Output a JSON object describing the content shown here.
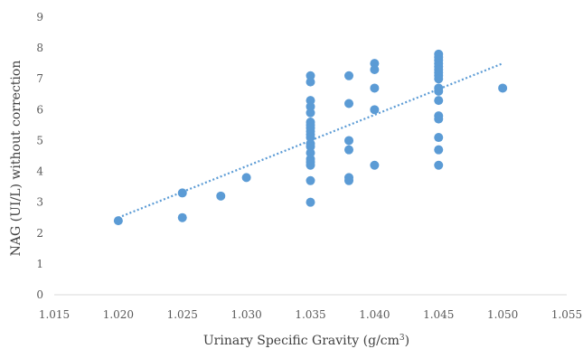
{
  "chart_data": {
    "type": "scatter",
    "xlabel": "Urinary Specific Gravity (g/cm",
    "xlabel_sup": "3",
    "xlabel_close": ")",
    "ylabel": "NAG (UI/L) without correction",
    "xlim": [
      1.015,
      1.055
    ],
    "ylim": [
      0,
      9
    ],
    "x_ticks": [
      "1.015",
      "1.020",
      "1.025",
      "1.030",
      "1.035",
      "1.040",
      "1.045",
      "1.050",
      "1.055"
    ],
    "y_ticks": [
      "0",
      "1",
      "2",
      "3",
      "4",
      "5",
      "6",
      "7",
      "8",
      "9"
    ],
    "grid": false,
    "legend": "none",
    "colors": {
      "points": "#5b9bd5",
      "trendline": "#5b9bd5",
      "axis": "#d9d9d9"
    },
    "series": [
      {
        "points": [
          [
            1.02,
            2.4
          ],
          [
            1.025,
            3.3
          ],
          [
            1.025,
            2.5
          ],
          [
            1.028,
            3.2
          ],
          [
            1.03,
            3.8
          ],
          [
            1.035,
            7.1
          ],
          [
            1.035,
            6.9
          ],
          [
            1.035,
            6.3
          ],
          [
            1.035,
            6.1
          ],
          [
            1.035,
            5.9
          ],
          [
            1.035,
            5.6
          ],
          [
            1.035,
            5.5
          ],
          [
            1.035,
            5.4
          ],
          [
            1.035,
            5.3
          ],
          [
            1.035,
            5.2
          ],
          [
            1.035,
            5.1
          ],
          [
            1.035,
            4.9
          ],
          [
            1.035,
            4.8
          ],
          [
            1.035,
            4.6
          ],
          [
            1.035,
            4.4
          ],
          [
            1.035,
            4.3
          ],
          [
            1.035,
            4.2
          ],
          [
            1.035,
            3.7
          ],
          [
            1.035,
            3.0
          ],
          [
            1.038,
            7.1
          ],
          [
            1.038,
            6.2
          ],
          [
            1.038,
            5.0
          ],
          [
            1.038,
            4.7
          ],
          [
            1.038,
            3.8
          ],
          [
            1.038,
            3.7
          ],
          [
            1.04,
            7.5
          ],
          [
            1.04,
            7.3
          ],
          [
            1.04,
            6.7
          ],
          [
            1.04,
            6.0
          ],
          [
            1.04,
            4.2
          ],
          [
            1.045,
            7.8
          ],
          [
            1.045,
            7.7
          ],
          [
            1.045,
            7.6
          ],
          [
            1.045,
            7.5
          ],
          [
            1.045,
            7.4
          ],
          [
            1.045,
            7.3
          ],
          [
            1.045,
            7.2
          ],
          [
            1.045,
            7.1
          ],
          [
            1.045,
            7.0
          ],
          [
            1.045,
            6.7
          ],
          [
            1.045,
            6.6
          ],
          [
            1.045,
            6.3
          ],
          [
            1.045,
            5.8
          ],
          [
            1.045,
            5.7
          ],
          [
            1.045,
            5.1
          ],
          [
            1.045,
            4.7
          ],
          [
            1.045,
            4.2
          ],
          [
            1.05,
            6.7
          ]
        ]
      }
    ],
    "trendline": {
      "style": "dotted",
      "from": [
        1.02,
        2.5
      ],
      "to": [
        1.05,
        7.5
      ]
    }
  }
}
